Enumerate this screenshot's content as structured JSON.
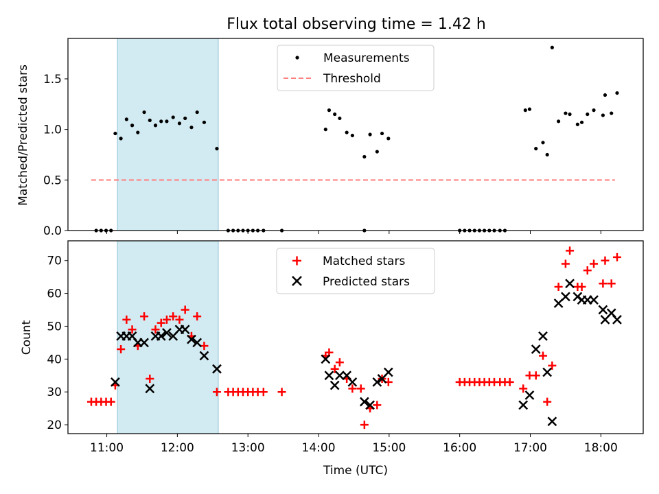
{
  "title": "Flux total observing time = 1.42 h",
  "colors": {
    "measurement": "#000000",
    "threshold": "#ff7f7f",
    "matched": "#ff0000",
    "predicted": "#000000",
    "highlight": "#add8e6"
  },
  "chart_data": [
    {
      "type": "scatter",
      "ylabel": "Matched/Predicted stars",
      "xlim": [
        10.45,
        18.6
      ],
      "ylim": [
        0,
        1.9
      ],
      "yticks": [
        0.0,
        0.5,
        1.0,
        1.5
      ],
      "ytick_labels": [
        "0.0",
        "0.5",
        "1.0",
        "1.5"
      ],
      "legend_position": "top-center",
      "highlight_span": [
        11.15,
        12.58
      ],
      "series": [
        {
          "name": "Measurements",
          "marker": "dot",
          "points": [
            [
              10.85,
              0
            ],
            [
              10.92,
              0
            ],
            [
              10.99,
              0
            ],
            [
              11.06,
              0
            ],
            [
              11.12,
              0.96
            ],
            [
              11.2,
              0.91
            ],
            [
              11.28,
              1.1
            ],
            [
              11.36,
              1.04
            ],
            [
              11.44,
              0.97
            ],
            [
              11.53,
              1.17
            ],
            [
              11.61,
              1.09
            ],
            [
              11.69,
              1.04
            ],
            [
              11.77,
              1.08
            ],
            [
              11.85,
              1.08
            ],
            [
              11.94,
              1.12
            ],
            [
              12.03,
              1.06
            ],
            [
              12.11,
              1.11
            ],
            [
              12.2,
              1.02
            ],
            [
              12.28,
              1.17
            ],
            [
              12.38,
              1.07
            ],
            [
              12.56,
              0.81
            ],
            [
              12.72,
              0
            ],
            [
              12.79,
              0
            ],
            [
              12.86,
              0
            ],
            [
              12.93,
              0
            ],
            [
              13.0,
              0
            ],
            [
              13.07,
              0
            ],
            [
              13.14,
              0
            ],
            [
              13.22,
              0
            ],
            [
              13.48,
              0
            ],
            [
              14.1,
              1.0
            ],
            [
              14.15,
              1.19
            ],
            [
              14.23,
              1.15
            ],
            [
              14.3,
              1.11
            ],
            [
              14.4,
              0.97
            ],
            [
              14.48,
              0.94
            ],
            [
              14.65,
              0.73
            ],
            [
              14.73,
              0.95
            ],
            [
              14.83,
              0.78
            ],
            [
              14.9,
              0.96
            ],
            [
              14.99,
              0.91
            ],
            [
              14.65,
              0
            ],
            [
              16.0,
              0
            ],
            [
              16.07,
              0
            ],
            [
              16.14,
              0
            ],
            [
              16.21,
              0
            ],
            [
              16.28,
              0
            ],
            [
              16.35,
              0
            ],
            [
              16.42,
              0
            ],
            [
              16.49,
              0
            ],
            [
              16.57,
              0
            ],
            [
              16.64,
              0
            ],
            [
              16.93,
              1.19
            ],
            [
              16.99,
              1.2
            ],
            [
              17.08,
              0.81
            ],
            [
              17.18,
              0.87
            ],
            [
              17.24,
              0.75
            ],
            [
              17.31,
              1.81
            ],
            [
              17.4,
              1.08
            ],
            [
              17.5,
              1.16
            ],
            [
              17.56,
              1.15
            ],
            [
              17.67,
              1.05
            ],
            [
              17.73,
              1.07
            ],
            [
              17.81,
              1.15
            ],
            [
              17.9,
              1.19
            ],
            [
              18.03,
              1.14
            ],
            [
              18.06,
              1.34
            ],
            [
              18.15,
              1.16
            ],
            [
              18.23,
              1.36
            ]
          ]
        },
        {
          "name": "Threshold",
          "line": "dashed",
          "x": [
            10.78,
            18.2
          ],
          "y": [
            0.5,
            0.5
          ]
        }
      ]
    },
    {
      "type": "scatter",
      "xlabel": "Time (UTC)",
      "ylabel": "Count",
      "xlim": [
        10.45,
        18.6
      ],
      "ylim": [
        17.3,
        76
      ],
      "yticks": [
        20,
        30,
        40,
        50,
        60,
        70
      ],
      "ytick_labels": [
        "20",
        "30",
        "40",
        "50",
        "60",
        "70"
      ],
      "xticks": [
        11,
        12,
        13,
        14,
        15,
        16,
        17,
        18
      ],
      "xtick_labels": [
        "11:00",
        "12:00",
        "13:00",
        "14:00",
        "15:00",
        "16:00",
        "17:00",
        "18:00"
      ],
      "legend_position": "top-center",
      "highlight_span": [
        11.15,
        12.58
      ],
      "series": [
        {
          "name": "Matched stars",
          "marker": "plus",
          "points": [
            [
              10.78,
              27
            ],
            [
              10.85,
              27
            ],
            [
              10.92,
              27
            ],
            [
              10.99,
              27
            ],
            [
              11.06,
              27
            ],
            [
              11.12,
              32
            ],
            [
              11.2,
              43
            ],
            [
              11.28,
              52
            ],
            [
              11.36,
              49
            ],
            [
              11.44,
              44
            ],
            [
              11.53,
              53
            ],
            [
              11.61,
              34
            ],
            [
              11.69,
              49
            ],
            [
              11.77,
              51
            ],
            [
              11.85,
              52
            ],
            [
              11.94,
              53
            ],
            [
              12.03,
              52
            ],
            [
              12.11,
              55
            ],
            [
              12.2,
              47
            ],
            [
              12.28,
              53
            ],
            [
              12.38,
              44
            ],
            [
              12.56,
              30
            ],
            [
              12.72,
              30
            ],
            [
              12.79,
              30
            ],
            [
              12.86,
              30
            ],
            [
              12.93,
              30
            ],
            [
              13.0,
              30
            ],
            [
              13.07,
              30
            ],
            [
              13.14,
              30
            ],
            [
              13.22,
              30
            ],
            [
              13.48,
              30
            ],
            [
              14.1,
              41
            ],
            [
              14.15,
              42
            ],
            [
              14.23,
              37
            ],
            [
              14.3,
              39
            ],
            [
              14.4,
              34
            ],
            [
              14.48,
              31
            ],
            [
              14.6,
              31
            ],
            [
              14.65,
              20
            ],
            [
              14.73,
              25
            ],
            [
              14.83,
              26
            ],
            [
              14.9,
              34
            ],
            [
              14.99,
              33
            ],
            [
              16.0,
              33
            ],
            [
              16.07,
              33
            ],
            [
              16.14,
              33
            ],
            [
              16.21,
              33
            ],
            [
              16.28,
              33
            ],
            [
              16.35,
              33
            ],
            [
              16.42,
              33
            ],
            [
              16.49,
              33
            ],
            [
              16.57,
              33
            ],
            [
              16.64,
              33
            ],
            [
              16.71,
              33
            ],
            [
              16.9,
              31
            ],
            [
              16.99,
              35
            ],
            [
              17.08,
              35
            ],
            [
              17.18,
              41
            ],
            [
              17.24,
              27
            ],
            [
              17.31,
              38
            ],
            [
              17.4,
              62
            ],
            [
              17.5,
              69
            ],
            [
              17.56,
              73
            ],
            [
              17.67,
              62
            ],
            [
              17.73,
              62
            ],
            [
              17.81,
              67
            ],
            [
              17.9,
              69
            ],
            [
              18.03,
              63
            ],
            [
              18.06,
              70
            ],
            [
              18.15,
              63
            ],
            [
              18.23,
              71
            ]
          ]
        },
        {
          "name": "Predicted stars",
          "marker": "x",
          "points": [
            [
              11.12,
              33
            ],
            [
              11.2,
              47
            ],
            [
              11.28,
              47
            ],
            [
              11.36,
              47
            ],
            [
              11.44,
              45
            ],
            [
              11.53,
              45
            ],
            [
              11.61,
              31
            ],
            [
              11.69,
              47
            ],
            [
              11.77,
              47
            ],
            [
              11.85,
              48
            ],
            [
              11.94,
              47
            ],
            [
              12.03,
              49
            ],
            [
              12.11,
              49
            ],
            [
              12.2,
              46
            ],
            [
              12.28,
              45
            ],
            [
              12.38,
              41
            ],
            [
              12.56,
              37
            ],
            [
              14.1,
              40
            ],
            [
              14.15,
              35
            ],
            [
              14.23,
              32
            ],
            [
              14.3,
              35
            ],
            [
              14.4,
              35
            ],
            [
              14.48,
              33
            ],
            [
              14.65,
              27
            ],
            [
              14.73,
              26
            ],
            [
              14.83,
              33
            ],
            [
              14.9,
              34
            ],
            [
              14.99,
              36
            ],
            [
              16.9,
              26
            ],
            [
              16.99,
              29
            ],
            [
              17.08,
              43
            ],
            [
              17.18,
              47
            ],
            [
              17.24,
              36
            ],
            [
              17.31,
              21
            ],
            [
              17.4,
              57
            ],
            [
              17.5,
              59
            ],
            [
              17.56,
              63
            ],
            [
              17.67,
              59
            ],
            [
              17.73,
              58
            ],
            [
              17.81,
              58
            ],
            [
              17.9,
              58
            ],
            [
              18.03,
              55
            ],
            [
              18.06,
              52
            ],
            [
              18.15,
              54
            ],
            [
              18.23,
              52
            ]
          ]
        }
      ]
    }
  ]
}
